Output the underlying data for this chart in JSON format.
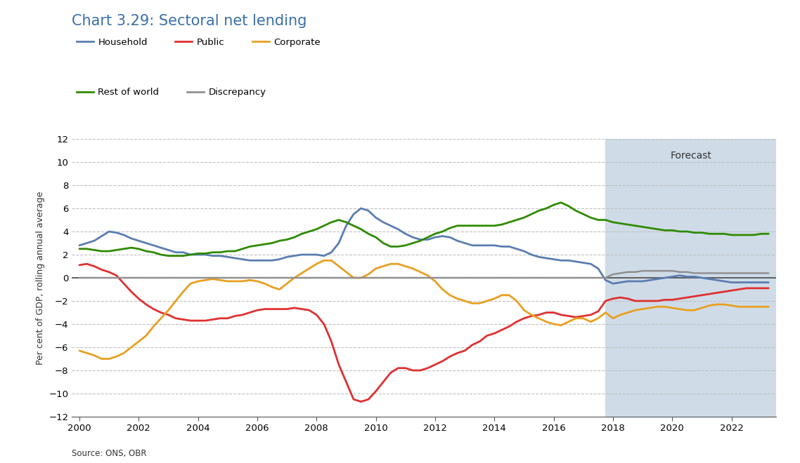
{
  "title": "Chart 3.29: Sectoral net lending",
  "ylabel": "Per cent of GDP, rolling annual average",
  "source": "Source: ONS, OBR",
  "forecast_start": 2017.75,
  "xlim": [
    1999.75,
    2023.5
  ],
  "ylim": [
    -12,
    12
  ],
  "yticks": [
    -12,
    -10,
    -8,
    -6,
    -4,
    -2,
    0,
    2,
    4,
    6,
    8,
    10,
    12
  ],
  "xticks": [
    2000,
    2002,
    2004,
    2006,
    2008,
    2010,
    2012,
    2014,
    2016,
    2018,
    2020,
    2022
  ],
  "background_color": "#ffffff",
  "forecast_bg_color": "#cfdce8",
  "title_color": "#3a6fa8",
  "series": {
    "Household": {
      "color": "#5b7db1",
      "lw": 2.0,
      "x": [
        2000.0,
        2000.25,
        2000.5,
        2000.75,
        2001.0,
        2001.25,
        2001.5,
        2001.75,
        2002.0,
        2002.25,
        2002.5,
        2002.75,
        2003.0,
        2003.25,
        2003.5,
        2003.75,
        2004.0,
        2004.25,
        2004.5,
        2004.75,
        2005.0,
        2005.25,
        2005.5,
        2005.75,
        2006.0,
        2006.25,
        2006.5,
        2006.75,
        2007.0,
        2007.25,
        2007.5,
        2007.75,
        2008.0,
        2008.25,
        2008.5,
        2008.75,
        2009.0,
        2009.25,
        2009.5,
        2009.75,
        2010.0,
        2010.25,
        2010.5,
        2010.75,
        2011.0,
        2011.25,
        2011.5,
        2011.75,
        2012.0,
        2012.25,
        2012.5,
        2012.75,
        2013.0,
        2013.25,
        2013.5,
        2013.75,
        2014.0,
        2014.25,
        2014.5,
        2014.75,
        2015.0,
        2015.25,
        2015.5,
        2015.75,
        2016.0,
        2016.25,
        2016.5,
        2016.75,
        2017.0,
        2017.25,
        2017.5,
        2017.75,
        2018.0,
        2018.25,
        2018.5,
        2018.75,
        2019.0,
        2019.25,
        2019.5,
        2019.75,
        2020.0,
        2020.25,
        2020.5,
        2020.75,
        2021.0,
        2021.25,
        2021.5,
        2021.75,
        2022.0,
        2022.25,
        2022.5,
        2022.75,
        2023.0,
        2023.25
      ],
      "y": [
        2.8,
        3.0,
        3.2,
        3.6,
        4.0,
        3.9,
        3.7,
        3.4,
        3.2,
        3.0,
        2.8,
        2.6,
        2.4,
        2.2,
        2.2,
        2.0,
        2.0,
        2.0,
        1.9,
        1.9,
        1.8,
        1.7,
        1.6,
        1.5,
        1.5,
        1.5,
        1.5,
        1.6,
        1.8,
        1.9,
        2.0,
        2.0,
        2.0,
        1.9,
        2.2,
        3.0,
        4.5,
        5.5,
        6.0,
        5.8,
        5.2,
        4.8,
        4.5,
        4.2,
        3.8,
        3.5,
        3.3,
        3.3,
        3.5,
        3.6,
        3.5,
        3.2,
        3.0,
        2.8,
        2.8,
        2.8,
        2.8,
        2.7,
        2.7,
        2.5,
        2.3,
        2.0,
        1.8,
        1.7,
        1.6,
        1.5,
        1.5,
        1.4,
        1.3,
        1.2,
        0.8,
        -0.2,
        -0.5,
        -0.4,
        -0.3,
        -0.3,
        -0.3,
        -0.2,
        -0.1,
        0.0,
        0.1,
        0.2,
        0.1,
        0.1,
        0.0,
        -0.1,
        -0.2,
        -0.3,
        -0.4,
        -0.4,
        -0.4,
        -0.4,
        -0.4,
        -0.4
      ]
    },
    "Public": {
      "color": "#e03030",
      "lw": 2.0,
      "x": [
        2000.0,
        2000.25,
        2000.5,
        2000.75,
        2001.0,
        2001.25,
        2001.5,
        2001.75,
        2002.0,
        2002.25,
        2002.5,
        2002.75,
        2003.0,
        2003.25,
        2003.5,
        2003.75,
        2004.0,
        2004.25,
        2004.5,
        2004.75,
        2005.0,
        2005.25,
        2005.5,
        2005.75,
        2006.0,
        2006.25,
        2006.5,
        2006.75,
        2007.0,
        2007.25,
        2007.5,
        2007.75,
        2008.0,
        2008.25,
        2008.5,
        2008.75,
        2009.0,
        2009.25,
        2009.5,
        2009.75,
        2010.0,
        2010.25,
        2010.5,
        2010.75,
        2011.0,
        2011.25,
        2011.5,
        2011.75,
        2012.0,
        2012.25,
        2012.5,
        2012.75,
        2013.0,
        2013.25,
        2013.5,
        2013.75,
        2014.0,
        2014.25,
        2014.5,
        2014.75,
        2015.0,
        2015.25,
        2015.5,
        2015.75,
        2016.0,
        2016.25,
        2016.5,
        2016.75,
        2017.0,
        2017.25,
        2017.5,
        2017.75,
        2018.0,
        2018.25,
        2018.5,
        2018.75,
        2019.0,
        2019.25,
        2019.5,
        2019.75,
        2020.0,
        2020.25,
        2020.5,
        2020.75,
        2021.0,
        2021.25,
        2021.5,
        2021.75,
        2022.0,
        2022.25,
        2022.5,
        2022.75,
        2023.0,
        2023.25
      ],
      "y": [
        1.1,
        1.2,
        1.0,
        0.7,
        0.5,
        0.2,
        -0.5,
        -1.2,
        -1.8,
        -2.3,
        -2.7,
        -3.0,
        -3.2,
        -3.5,
        -3.6,
        -3.7,
        -3.7,
        -3.7,
        -3.6,
        -3.5,
        -3.5,
        -3.3,
        -3.2,
        -3.0,
        -2.8,
        -2.7,
        -2.7,
        -2.7,
        -2.7,
        -2.6,
        -2.7,
        -2.8,
        -3.2,
        -4.0,
        -5.5,
        -7.5,
        -9.0,
        -10.5,
        -10.7,
        -10.5,
        -9.8,
        -9.0,
        -8.2,
        -7.8,
        -7.8,
        -8.0,
        -8.0,
        -7.8,
        -7.5,
        -7.2,
        -6.8,
        -6.5,
        -6.3,
        -5.8,
        -5.5,
        -5.0,
        -4.8,
        -4.5,
        -4.2,
        -3.8,
        -3.5,
        -3.3,
        -3.2,
        -3.0,
        -3.0,
        -3.2,
        -3.3,
        -3.4,
        -3.3,
        -3.2,
        -2.9,
        -2.0,
        -1.8,
        -1.7,
        -1.8,
        -2.0,
        -2.0,
        -2.0,
        -2.0,
        -1.9,
        -1.9,
        -1.8,
        -1.7,
        -1.6,
        -1.5,
        -1.4,
        -1.3,
        -1.2,
        -1.1,
        -1.0,
        -0.9,
        -0.9,
        -0.9,
        -0.9
      ]
    },
    "Corporate": {
      "color": "#e8a020",
      "lw": 2.0,
      "x": [
        2000.0,
        2000.25,
        2000.5,
        2000.75,
        2001.0,
        2001.25,
        2001.5,
        2001.75,
        2002.0,
        2002.25,
        2002.5,
        2002.75,
        2003.0,
        2003.25,
        2003.5,
        2003.75,
        2004.0,
        2004.25,
        2004.5,
        2004.75,
        2005.0,
        2005.25,
        2005.5,
        2005.75,
        2006.0,
        2006.25,
        2006.5,
        2006.75,
        2007.0,
        2007.25,
        2007.5,
        2007.75,
        2008.0,
        2008.25,
        2008.5,
        2008.75,
        2009.0,
        2009.25,
        2009.5,
        2009.75,
        2010.0,
        2010.25,
        2010.5,
        2010.75,
        2011.0,
        2011.25,
        2011.5,
        2011.75,
        2012.0,
        2012.25,
        2012.5,
        2012.75,
        2013.0,
        2013.25,
        2013.5,
        2013.75,
        2014.0,
        2014.25,
        2014.5,
        2014.75,
        2015.0,
        2015.25,
        2015.5,
        2015.75,
        2016.0,
        2016.25,
        2016.5,
        2016.75,
        2017.0,
        2017.25,
        2017.5,
        2017.75,
        2018.0,
        2018.25,
        2018.5,
        2018.75,
        2019.0,
        2019.25,
        2019.5,
        2019.75,
        2020.0,
        2020.25,
        2020.5,
        2020.75,
        2021.0,
        2021.25,
        2021.5,
        2021.75,
        2022.0,
        2022.25,
        2022.5,
        2022.75,
        2023.0,
        2023.25
      ],
      "y": [
        -6.3,
        -6.5,
        -6.7,
        -7.0,
        -7.0,
        -6.8,
        -6.5,
        -6.0,
        -5.5,
        -5.0,
        -4.2,
        -3.5,
        -2.8,
        -2.0,
        -1.2,
        -0.5,
        -0.3,
        -0.2,
        -0.1,
        -0.2,
        -0.3,
        -0.3,
        -0.3,
        -0.2,
        -0.3,
        -0.5,
        -0.8,
        -1.0,
        -0.5,
        0.0,
        0.4,
        0.8,
        1.2,
        1.5,
        1.5,
        1.0,
        0.5,
        0.0,
        0.0,
        0.3,
        0.8,
        1.0,
        1.2,
        1.2,
        1.0,
        0.8,
        0.5,
        0.2,
        -0.3,
        -1.0,
        -1.5,
        -1.8,
        -2.0,
        -2.2,
        -2.2,
        -2.0,
        -1.8,
        -1.5,
        -1.5,
        -2.0,
        -2.8,
        -3.2,
        -3.5,
        -3.8,
        -4.0,
        -4.1,
        -3.8,
        -3.5,
        -3.5,
        -3.8,
        -3.5,
        -3.0,
        -3.5,
        -3.2,
        -3.0,
        -2.8,
        -2.7,
        -2.6,
        -2.5,
        -2.5,
        -2.6,
        -2.7,
        -2.8,
        -2.8,
        -2.6,
        -2.4,
        -2.3,
        -2.3,
        -2.4,
        -2.5,
        -2.5,
        -2.5,
        -2.5,
        -2.5
      ]
    },
    "Rest of world": {
      "color": "#2e8b00",
      "lw": 2.0,
      "x": [
        2000.0,
        2000.25,
        2000.5,
        2000.75,
        2001.0,
        2001.25,
        2001.5,
        2001.75,
        2002.0,
        2002.25,
        2002.5,
        2002.75,
        2003.0,
        2003.25,
        2003.5,
        2003.75,
        2004.0,
        2004.25,
        2004.5,
        2004.75,
        2005.0,
        2005.25,
        2005.5,
        2005.75,
        2006.0,
        2006.25,
        2006.5,
        2006.75,
        2007.0,
        2007.25,
        2007.5,
        2007.75,
        2008.0,
        2008.25,
        2008.5,
        2008.75,
        2009.0,
        2009.25,
        2009.5,
        2009.75,
        2010.0,
        2010.25,
        2010.5,
        2010.75,
        2011.0,
        2011.25,
        2011.5,
        2011.75,
        2012.0,
        2012.25,
        2012.5,
        2012.75,
        2013.0,
        2013.25,
        2013.5,
        2013.75,
        2014.0,
        2014.25,
        2014.5,
        2014.75,
        2015.0,
        2015.25,
        2015.5,
        2015.75,
        2016.0,
        2016.25,
        2016.5,
        2016.75,
        2017.0,
        2017.25,
        2017.5,
        2017.75,
        2018.0,
        2018.25,
        2018.5,
        2018.75,
        2019.0,
        2019.25,
        2019.5,
        2019.75,
        2020.0,
        2020.25,
        2020.5,
        2020.75,
        2021.0,
        2021.25,
        2021.5,
        2021.75,
        2022.0,
        2022.25,
        2022.5,
        2022.75,
        2023.0,
        2023.25
      ],
      "y": [
        2.5,
        2.5,
        2.4,
        2.3,
        2.3,
        2.4,
        2.5,
        2.6,
        2.5,
        2.3,
        2.2,
        2.0,
        1.9,
        1.9,
        1.9,
        2.0,
        2.1,
        2.1,
        2.2,
        2.2,
        2.3,
        2.3,
        2.5,
        2.7,
        2.8,
        2.9,
        3.0,
        3.2,
        3.3,
        3.5,
        3.8,
        4.0,
        4.2,
        4.5,
        4.8,
        5.0,
        4.8,
        4.5,
        4.2,
        3.8,
        3.5,
        3.0,
        2.7,
        2.7,
        2.8,
        3.0,
        3.2,
        3.5,
        3.8,
        4.0,
        4.3,
        4.5,
        4.5,
        4.5,
        4.5,
        4.5,
        4.5,
        4.6,
        4.8,
        5.0,
        5.2,
        5.5,
        5.8,
        6.0,
        6.3,
        6.5,
        6.2,
        5.8,
        5.5,
        5.2,
        5.0,
        5.0,
        4.8,
        4.7,
        4.6,
        4.5,
        4.4,
        4.3,
        4.2,
        4.1,
        4.1,
        4.0,
        4.0,
        3.9,
        3.9,
        3.8,
        3.8,
        3.8,
        3.7,
        3.7,
        3.7,
        3.7,
        3.8,
        3.8
      ]
    },
    "Discrepancy": {
      "color": "#909090",
      "lw": 1.8,
      "x": [
        2000.0,
        2000.25,
        2000.5,
        2000.75,
        2001.0,
        2001.25,
        2001.5,
        2001.75,
        2002.0,
        2002.25,
        2002.5,
        2002.75,
        2003.0,
        2003.25,
        2003.5,
        2003.75,
        2004.0,
        2004.25,
        2004.5,
        2004.75,
        2005.0,
        2005.25,
        2005.5,
        2005.75,
        2006.0,
        2006.25,
        2006.5,
        2006.75,
        2007.0,
        2007.25,
        2007.5,
        2007.75,
        2008.0,
        2008.25,
        2008.5,
        2008.75,
        2009.0,
        2009.25,
        2009.5,
        2009.75,
        2010.0,
        2010.25,
        2010.5,
        2010.75,
        2011.0,
        2011.25,
        2011.5,
        2011.75,
        2012.0,
        2012.25,
        2012.5,
        2012.75,
        2013.0,
        2013.25,
        2013.5,
        2013.75,
        2014.0,
        2014.25,
        2014.5,
        2014.75,
        2015.0,
        2015.25,
        2015.5,
        2015.75,
        2016.0,
        2016.25,
        2016.5,
        2016.75,
        2017.0,
        2017.25,
        2017.5,
        2017.75,
        2018.0,
        2018.25,
        2018.5,
        2018.75,
        2019.0,
        2019.25,
        2019.5,
        2019.75,
        2020.0,
        2020.25,
        2020.5,
        2020.75,
        2021.0,
        2021.25,
        2021.5,
        2021.75,
        2022.0,
        2022.25,
        2022.5,
        2022.75,
        2023.0,
        2023.25
      ],
      "y": [
        0.0,
        0.0,
        0.0,
        0.0,
        0.0,
        0.0,
        0.0,
        0.0,
        0.0,
        0.0,
        0.0,
        0.0,
        0.0,
        0.0,
        0.0,
        0.0,
        0.0,
        0.0,
        0.0,
        0.0,
        0.0,
        0.0,
        0.0,
        0.0,
        0.0,
        0.0,
        0.0,
        0.0,
        0.0,
        0.0,
        0.0,
        0.0,
        0.0,
        0.0,
        0.0,
        0.0,
        0.0,
        0.0,
        0.0,
        0.0,
        0.0,
        0.0,
        0.0,
        0.0,
        0.0,
        0.0,
        0.0,
        0.0,
        0.0,
        0.0,
        0.0,
        0.0,
        0.0,
        0.0,
        0.0,
        0.0,
        0.0,
        0.0,
        0.0,
        0.0,
        0.0,
        0.0,
        0.0,
        0.0,
        0.0,
        0.0,
        0.0,
        0.0,
        0.0,
        0.0,
        0.0,
        0.0,
        0.3,
        0.4,
        0.5,
        0.5,
        0.6,
        0.6,
        0.6,
        0.6,
        0.6,
        0.5,
        0.5,
        0.4,
        0.4,
        0.4,
        0.4,
        0.4,
        0.4,
        0.4,
        0.4,
        0.4,
        0.4,
        0.4
      ]
    }
  },
  "legend_row1": [
    "Household",
    "Public",
    "Corporate"
  ],
  "legend_row2": [
    "Rest of world",
    "Discrepancy"
  ],
  "forecast_label": "Forecast"
}
